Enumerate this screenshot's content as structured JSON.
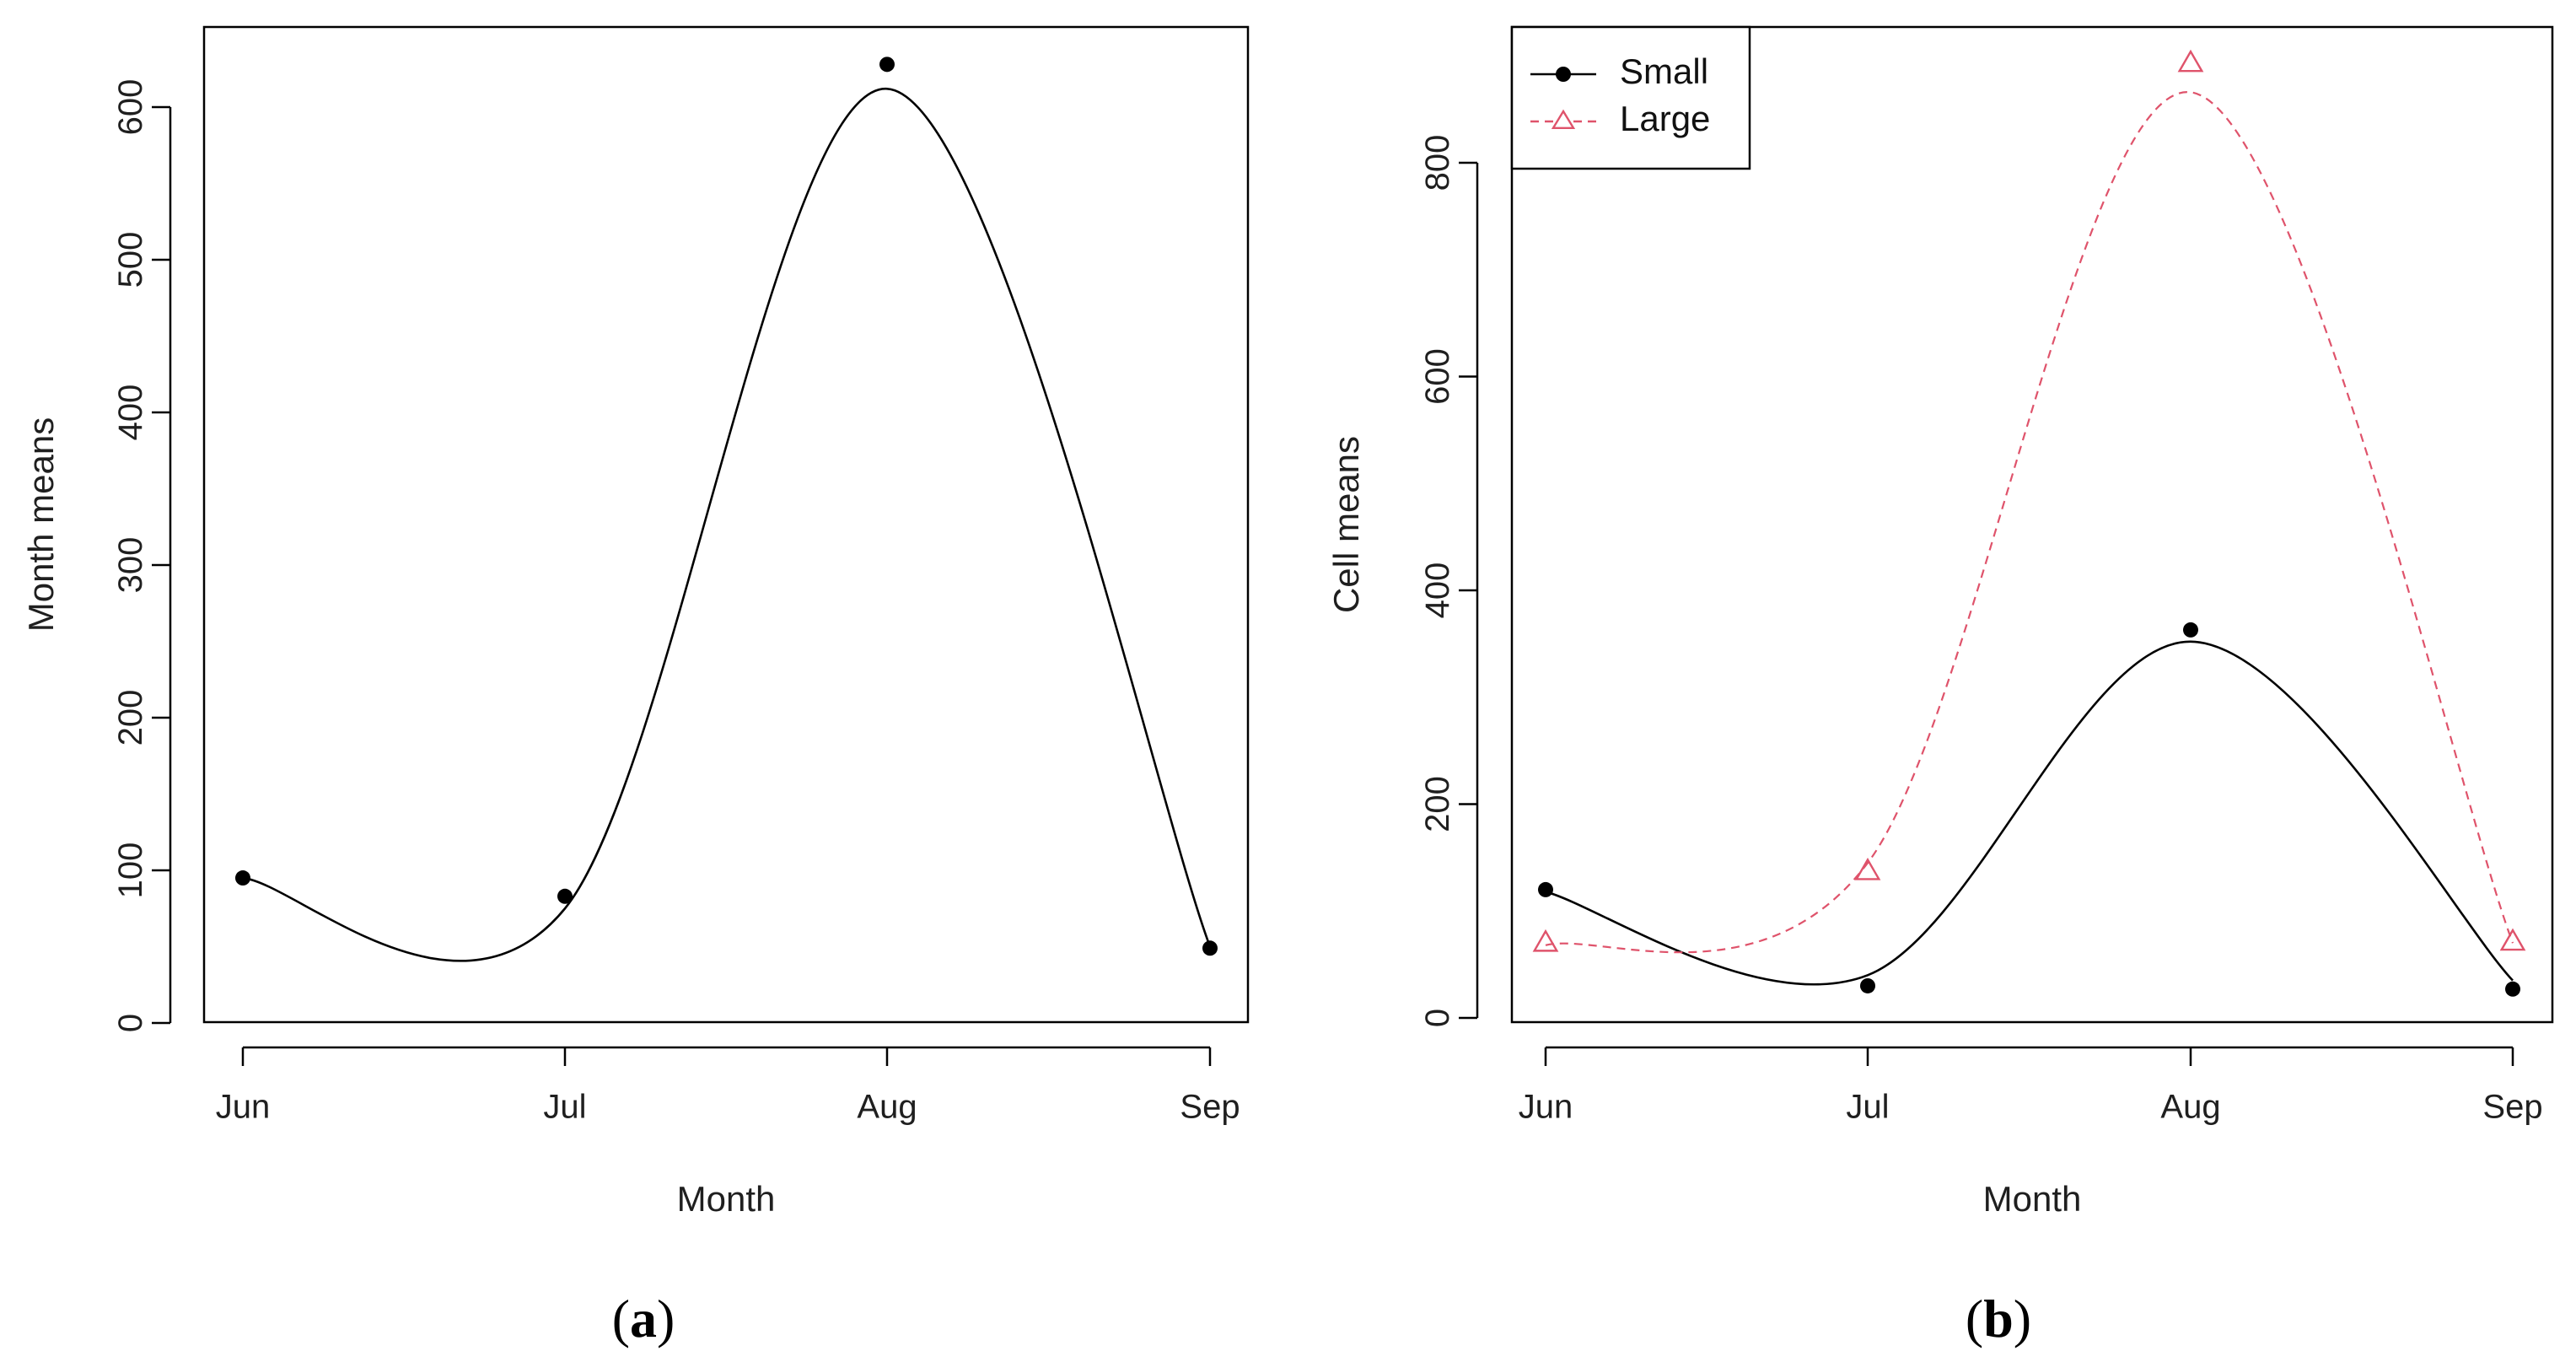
{
  "colors": {
    "small": "#000000",
    "large": "#df536b",
    "axis": "#000000"
  },
  "chart_data": [
    {
      "type": "line",
      "panel": "a",
      "caption_open": "(",
      "caption_letter": "a",
      "caption_close": ")",
      "xlabel": "Month",
      "ylabel": "Month means",
      "categories": [
        "Jun",
        "Jul",
        "Aug",
        "Sep"
      ],
      "ylim": [
        0,
        640
      ],
      "yticks": [
        0,
        100,
        200,
        300,
        400,
        500,
        600
      ],
      "series": [
        {
          "name": "Month means",
          "marker": "dot",
          "values": [
            95,
            83,
            628,
            49
          ],
          "smooth_values": [
            95,
            75,
            612,
            50
          ]
        }
      ]
    },
    {
      "type": "line",
      "panel": "b",
      "caption_open": "(",
      "caption_letter": "b",
      "caption_close": ")",
      "xlabel": "Month",
      "ylabel": "Cell means",
      "categories": [
        "Jun",
        "Jul",
        "Aug",
        "Sep"
      ],
      "ylim": [
        0,
        920
      ],
      "yticks": [
        0,
        200,
        400,
        600,
        800
      ],
      "legend": {
        "position": "top-left",
        "entries": [
          "Small",
          "Large"
        ]
      },
      "series": [
        {
          "name": "Small",
          "marker": "dot",
          "line": "solid",
          "values": [
            120,
            30,
            363,
            27
          ],
          "smooth_values": [
            118,
            40,
            352,
            35
          ]
        },
        {
          "name": "Large",
          "marker": "triangle",
          "line": "dashed",
          "values": [
            70,
            137,
            893,
            71
          ],
          "smooth_values": [
            68,
            145,
            866,
            70
          ]
        }
      ]
    }
  ]
}
